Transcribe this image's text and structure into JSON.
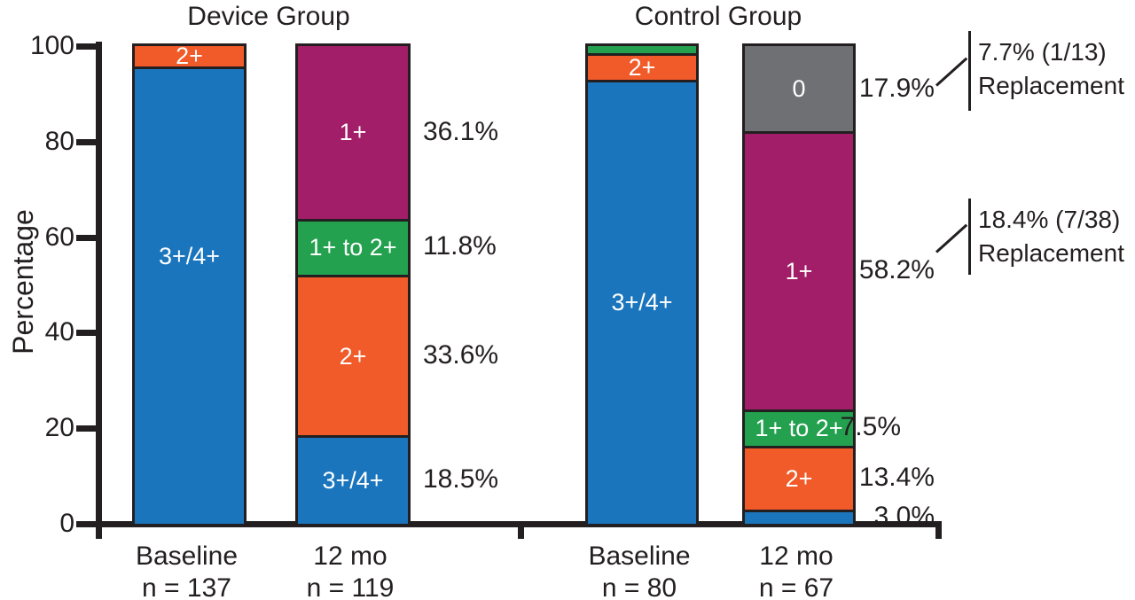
{
  "chart_data": {
    "type": "bar",
    "stacked": true,
    "title": "",
    "xlabel": "",
    "ylabel": "Percentage",
    "ylim": [
      0,
      100
    ],
    "yticks": [
      100,
      80,
      60,
      40,
      20,
      0
    ],
    "grid": false,
    "legend": "labels drawn inside segments",
    "grade_colors": {
      "3+/4+": "#1B75BC",
      "2+": "#F15A29",
      "1+ to 2+": "#23A14E",
      "1+": "#A21E68",
      "0": "#6F7073"
    },
    "groups": [
      {
        "title": "Device Group",
        "bars": [
          {
            "x_label": "Baseline",
            "n_label": "n = 137",
            "segments": [
              {
                "grade": "3+/4+",
                "value": 95.7,
                "label": "3+/4+"
              },
              {
                "grade": "2+",
                "value": 4.3,
                "label": "2+"
              }
            ]
          },
          {
            "x_label": "12 mo",
            "n_label": "n = 119",
            "segments": [
              {
                "grade": "3+/4+",
                "value": 18.5,
                "label": "3+/4+",
                "annotation": "18.5%"
              },
              {
                "grade": "2+",
                "value": 33.6,
                "label": "2+",
                "annotation": "33.6%"
              },
              {
                "grade": "1+ to 2+",
                "value": 11.8,
                "label": "1+ to 2+",
                "annotation": "11.8%"
              },
              {
                "grade": "1+",
                "value": 36.1,
                "label": "1+",
                "annotation": "36.1%"
              }
            ]
          }
        ]
      },
      {
        "title": "Control Group",
        "bars": [
          {
            "x_label": "Baseline",
            "n_label": "n = 80",
            "segments": [
              {
                "grade": "3+/4+",
                "value": 93.0,
                "label": "3+/4+"
              },
              {
                "grade": "2+",
                "value": 5.5,
                "label": "2+"
              },
              {
                "grade": "1+ to 2+",
                "value": 1.5,
                "label": ""
              }
            ]
          },
          {
            "x_label": "12 mo",
            "n_label": "n = 67",
            "segments": [
              {
                "grade": "3+/4+",
                "value": 3.0,
                "label": "",
                "annotation": "3.0%"
              },
              {
                "grade": "2+",
                "value": 13.4,
                "label": "2+",
                "annotation": "13.4%"
              },
              {
                "grade": "1+ to 2+",
                "value": 7.5,
                "label": "1+ to 2+",
                "annotation": "7.5%"
              },
              {
                "grade": "1+",
                "value": 58.2,
                "label": "1+",
                "annotation": "58.2%"
              },
              {
                "grade": "0",
                "value": 17.9,
                "label": "0",
                "annotation": "17.9%"
              }
            ]
          }
        ]
      }
    ],
    "replacement_notes": [
      {
        "line1": "7.7% (1/13)",
        "line2": "Replacement"
      },
      {
        "line1": "18.4% (7/38)",
        "line2": "Replacement"
      }
    ]
  }
}
